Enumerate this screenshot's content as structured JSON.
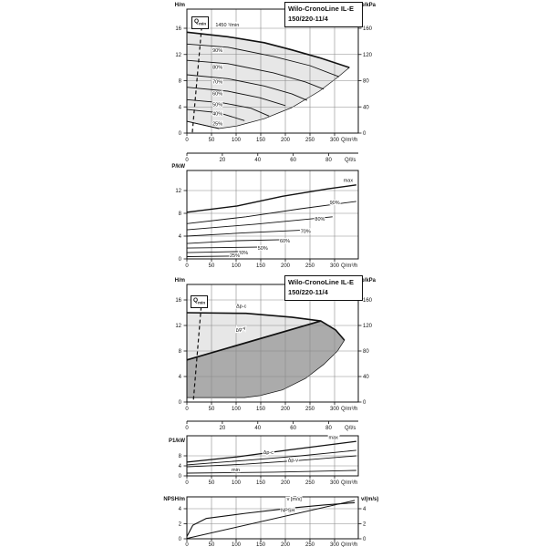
{
  "title": {
    "line1": "Wilo-CronoLine IL-E",
    "line2": "150/220-11/4"
  },
  "qmin": {
    "main": "Q",
    "sub": "min"
  },
  "colors": {
    "ink": "#111111",
    "grid": "#8a8a8a",
    "field_light": "#e7e7e7",
    "field_dark": "#ababab",
    "bg": "#ffffff"
  },
  "x_axis": {
    "label": "Q/m³/h",
    "ticks": [
      0,
      50,
      100,
      150,
      200,
      250,
      300
    ]
  },
  "ls_axis": {
    "label": "Q/l/s",
    "ticks": [
      0,
      20,
      40,
      60,
      80
    ]
  },
  "chart_data": [
    {
      "id": "c1",
      "type": "line",
      "name": "head-flow-speed-curves",
      "y_left": {
        "label": "H/m",
        "ticks": [
          0,
          4,
          8,
          12,
          16
        ]
      },
      "y_right": {
        "label": "p/kPa",
        "ticks": [
          0,
          40,
          80,
          120,
          160
        ]
      },
      "regions": [
        {
          "name": "operating-field",
          "fill": "field_light",
          "pts": [
            [
              0,
              15.4
            ],
            [
              83,
              14.7
            ],
            [
              157,
              13.8
            ],
            [
              213,
              12.7
            ],
            [
              269,
              11.5
            ],
            [
              330,
              10.0
            ],
            [
              306,
              8.5
            ],
            [
              269,
              6.4
            ],
            [
              213,
              3.9
            ],
            [
              157,
              2.2
            ],
            [
              102,
              1.1
            ],
            [
              65,
              0.7
            ],
            [
              0,
              1.8
            ]
          ]
        }
      ],
      "series": [
        {
          "name": "max-speed-curve",
          "w": 1.6,
          "pts": [
            [
              0,
              15.4
            ],
            [
              83,
              14.7
            ],
            [
              157,
              13.8
            ],
            [
              213,
              12.7
            ],
            [
              269,
              11.5
            ],
            [
              330,
              10.0
            ]
          ]
        },
        {
          "name": "curve-90pct",
          "w": 0.9,
          "pts": [
            [
              0,
              13.6
            ],
            [
              83,
              13.1
            ],
            [
              176,
              11.7
            ],
            [
              250,
              10.3
            ],
            [
              309,
              8.6
            ]
          ]
        },
        {
          "name": "curve-80pct",
          "w": 0.9,
          "pts": [
            [
              0,
              11.1
            ],
            [
              83,
              10.6
            ],
            [
              176,
              9.2
            ],
            [
              241,
              7.8
            ],
            [
              278,
              6.7
            ]
          ]
        },
        {
          "name": "curve-70pct",
          "w": 0.9,
          "pts": [
            [
              0,
              8.9
            ],
            [
              83,
              8.3
            ],
            [
              157,
              7.2
            ],
            [
              213,
              6.0
            ],
            [
              244,
              5.0
            ]
          ]
        },
        {
          "name": "curve-60pct",
          "w": 0.9,
          "pts": [
            [
              0,
              7.0
            ],
            [
              83,
              6.4
            ],
            [
              148,
              5.4
            ],
            [
              200,
              4.2
            ]
          ]
        },
        {
          "name": "curve-50pct",
          "w": 0.9,
          "pts": [
            [
              0,
              5.1
            ],
            [
              74,
              4.6
            ],
            [
              130,
              3.8
            ],
            [
              167,
              2.6
            ]
          ]
        },
        {
          "name": "curve-40pct",
          "w": 0.9,
          "pts": [
            [
              0,
              3.6
            ],
            [
              65,
              3.1
            ],
            [
              117,
              1.9
            ]
          ]
        },
        {
          "name": "curve-25pct",
          "w": 0.9,
          "pts": [
            [
              0,
              1.8
            ],
            [
              65,
              0.7
            ]
          ]
        },
        {
          "name": "qmin-line",
          "w": 1.2,
          "dash": "4 3",
          "pts": [
            [
              30,
              16.2
            ],
            [
              11,
              0
            ]
          ]
        }
      ],
      "labels": [
        {
          "text": "1450 ¹/min",
          "q": 58,
          "v": 16.3
        },
        {
          "text": "90%",
          "q": 52,
          "v": 12.4
        },
        {
          "text": "80%",
          "q": 52,
          "v": 9.8
        },
        {
          "text": "70%",
          "q": 52,
          "v": 7.6
        },
        {
          "text": "60%",
          "q": 52,
          "v": 5.8
        },
        {
          "text": "50%",
          "q": 52,
          "v": 4.1
        },
        {
          "text": "40%",
          "q": 52,
          "v": 2.7
        },
        {
          "text": "25%",
          "q": 52,
          "v": 1.2
        }
      ]
    },
    {
      "id": "c2",
      "type": "line",
      "name": "power-flow-speed-curves",
      "y_left": {
        "label": "P/kW",
        "ticks": [
          0,
          4,
          8,
          12
        ]
      },
      "series": [
        {
          "name": "power-max",
          "w": 1.4,
          "pts": [
            [
              0,
              8.2
            ],
            [
              102,
              9.3
            ],
            [
              194,
              11.0
            ],
            [
              287,
              12.3
            ],
            [
              344,
              13.0
            ]
          ]
        },
        {
          "name": "power-90pct",
          "w": 0.9,
          "pts": [
            [
              0,
              6.2
            ],
            [
              120,
              7.4
            ],
            [
              231,
              8.8
            ],
            [
              344,
              10.1
            ]
          ]
        },
        {
          "name": "power-80pct",
          "w": 0.9,
          "pts": [
            [
              0,
              5.1
            ],
            [
              139,
              6.1
            ],
            [
              296,
              7.4
            ]
          ]
        },
        {
          "name": "power-70pct",
          "w": 0.9,
          "pts": [
            [
              0,
              4.0
            ],
            [
              120,
              4.6
            ],
            [
              250,
              5.1
            ]
          ]
        },
        {
          "name": "power-60pct",
          "w": 0.9,
          "pts": [
            [
              0,
              2.7
            ],
            [
              102,
              3.2
            ],
            [
              204,
              3.4
            ]
          ]
        },
        {
          "name": "power-50pct",
          "w": 0.9,
          "pts": [
            [
              0,
              1.9
            ],
            [
              157,
              2.1
            ]
          ]
        },
        {
          "name": "power-40pct",
          "w": 0.9,
          "pts": [
            [
              0,
              1.1
            ],
            [
              111,
              1.3
            ]
          ]
        },
        {
          "name": "power-25pct",
          "w": 0.9,
          "pts": [
            [
              0,
              0.4
            ],
            [
              89,
              0.5
            ]
          ]
        }
      ],
      "labels": [
        {
          "text": "max",
          "q": 318,
          "v": 13.5
        },
        {
          "text": "90%",
          "q": 290,
          "v": 9.6
        },
        {
          "text": "80%",
          "q": 260,
          "v": 6.7
        },
        {
          "text": "70%",
          "q": 231,
          "v": 4.6
        },
        {
          "text": "60%",
          "q": 189,
          "v": 2.9
        },
        {
          "text": "50%",
          "q": 144,
          "v": 1.6
        },
        {
          "text": "40%",
          "q": 104,
          "v": 0.8
        },
        {
          "text": "25%",
          "q": 87,
          "v": 0.35
        }
      ]
    },
    {
      "id": "c3",
      "type": "area",
      "name": "control-mode-fields",
      "y_left": {
        "label": "H/m",
        "ticks": [
          0,
          4,
          8,
          12,
          16
        ]
      },
      "y_right": {
        "label": "p/kPa",
        "ticks": [
          0,
          40,
          80,
          120,
          160
        ]
      },
      "regions": [
        {
          "name": "dp-c-field",
          "fill": "field_light",
          "pts": [
            [
              0,
              14.0
            ],
            [
              120,
              13.9
            ],
            [
              213,
              13.3
            ],
            [
              272,
              12.7
            ],
            [
              0,
              6.6
            ]
          ]
        },
        {
          "name": "dp-v-field",
          "fill": "field_dark",
          "pts": [
            [
              0,
              6.6
            ],
            [
              272,
              12.7
            ],
            [
              302,
              11.3
            ],
            [
              320,
              9.7
            ],
            [
              306,
              8.0
            ],
            [
              278,
              5.9
            ],
            [
              241,
              3.7
            ],
            [
              194,
              1.9
            ],
            [
              148,
              1.0
            ],
            [
              117,
              0.7
            ],
            [
              0,
              0.7
            ]
          ]
        }
      ],
      "series": [
        {
          "name": "max-curve",
          "w": 1.6,
          "pts": [
            [
              0,
              14.0
            ],
            [
              120,
              13.9
            ],
            [
              213,
              13.3
            ],
            [
              272,
              12.7
            ],
            [
              302,
              11.3
            ],
            [
              320,
              9.7
            ]
          ]
        },
        {
          "name": "dp-v-max-line",
          "w": 1.7,
          "pts": [
            [
              0,
              6.6
            ],
            [
              272,
              12.7
            ]
          ]
        },
        {
          "name": "qmin-line",
          "w": 1.2,
          "dash": "4 3",
          "pts": [
            [
              30,
              15.9
            ],
            [
              13,
              0
            ]
          ]
        }
      ],
      "labels": [
        {
          "text": "Δp-c",
          "q": 100,
          "v": 14.8
        },
        {
          "text": "Δp-v",
          "q": 100,
          "v": 11.0,
          "rot": -14
        }
      ]
    },
    {
      "id": "c4",
      "type": "line",
      "name": "power-input-curves",
      "y_left": {
        "label": "P1/kW",
        "ticks": [
          0,
          4,
          8
        ]
      },
      "series": [
        {
          "name": "p1-max",
          "w": 1.3,
          "pts": [
            [
              0,
              5.5
            ],
            [
              102,
              7.6
            ],
            [
              213,
              10.5
            ],
            [
              344,
              13.8
            ]
          ]
        },
        {
          "name": "p1-dp-c",
          "w": 0.9,
          "pts": [
            [
              0,
              4.4
            ],
            [
              120,
              6.2
            ],
            [
              231,
              8.0
            ],
            [
              344,
              10.2
            ]
          ]
        },
        {
          "name": "p1-dp-v",
          "w": 0.9,
          "pts": [
            [
              0,
              3.6
            ],
            [
              120,
              4.7
            ],
            [
              231,
              6.2
            ],
            [
              344,
              8.0
            ]
          ]
        },
        {
          "name": "p1-min",
          "w": 0.9,
          "pts": [
            [
              0,
              1.1
            ],
            [
              176,
              1.5
            ],
            [
              344,
              2.2
            ]
          ]
        }
      ],
      "labels": [
        {
          "text": "max",
          "q": 288,
          "v": 14.7
        },
        {
          "text": "Δp-c",
          "q": 155,
          "v": 8.8
        },
        {
          "text": "Δp-v",
          "q": 205,
          "v": 5.6
        },
        {
          "text": "min",
          "q": 91,
          "v": 1.9
        }
      ]
    },
    {
      "id": "c5",
      "type": "line",
      "name": "npsh-velocity-chart",
      "y_left": {
        "label": "NPSH/m",
        "ticks": [
          0,
          2,
          4
        ]
      },
      "y_right": {
        "label": "v/(m/s)",
        "ticks": [
          0,
          2,
          4
        ]
      },
      "series": [
        {
          "name": "velocity-line",
          "w": 1.0,
          "pts": [
            [
              0,
              0.05
            ],
            [
              341,
              5.1
            ]
          ]
        },
        {
          "name": "npsh-curve",
          "w": 1.1,
          "pts": [
            [
              0,
              0.3
            ],
            [
              12,
              1.8
            ],
            [
              39,
              2.7
            ],
            [
              120,
              3.4
            ],
            [
              213,
              4.1
            ],
            [
              278,
              4.5
            ],
            [
              341,
              4.8
            ]
          ]
        }
      ],
      "labels": [
        {
          "text": "v [m/s]",
          "q": 203,
          "v": 5.1
        },
        {
          "text": "NPSH",
          "q": 191,
          "v": 3.6
        }
      ]
    }
  ]
}
